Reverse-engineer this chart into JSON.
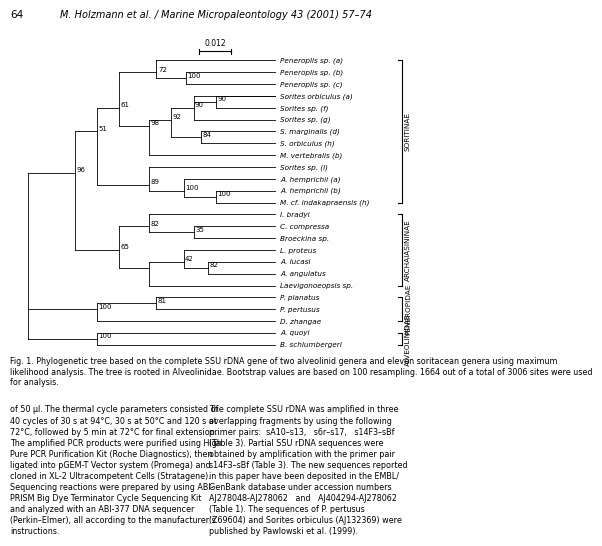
{
  "page_header": "64",
  "page_title": "M. Holzmann et al. / Marine Micropaleontology 43 (2001) 57–74",
  "scale_bar_label": "0.012",
  "fig_caption": "Fig. 1. Phylogenetic tree based on the complete SSU rDNA gene of two alveolinid genera and eleven soritacean genera using maximum\nlikelihood analysis. The tree is rooted in Alveolinidae. Bootstrap values are based on 100 resampling. 1664 out of a total of 3006 sites were used\nfor analysis.",
  "body_text_left": "of 50 μl. The thermal cycle parameters consisted of\n40 cycles of 30 s at 94°C, 30 s at 50°C and 120 s at\n72°C, followed by 5 min at 72°C for final extension.\nThe amplified PCR products were purified using High\nPure PCR Purification Kit (Roche Diagnostics), then\nligated into pGEM-T Vector system (Promega) and\ncloned in XL-2 Ultracompetent Cells (Stratagene).\nSequencing reactions were prepared by using ABI-\nPRISM Big Dye Terminator Cycle Sequencing Kit\nand analyzed with an ABI-377 DNA sequencer\n(Perkin–Elmer), all according to the manufacturer’s\ninstructions.",
  "body_text_right": "The complete SSU rDNA was amplified in three\noverlapping fragments by using the following\nprimer pairs:  sA10–s13,   s6r–s17,   s14F3–sBf\n(Table 3). Partial SSU rDNA sequences were\nobtained by amplification with the primer pair\ns14F3–sBf (Table 3). The new sequences reported\nin this paper have been deposited in the EMBL/\nGenBank database under accession numbers\nAJ278048-AJ278062   and   AJ404294-AJ278062\n(Table 1). The sequences of P. pertusus\n(Z69604) and Sorites orbiculus (AJ132369) were\npublished by Pawlowski et al. (1999).",
  "taxa": [
    "Peneroplis sp. (a)",
    "Peneroplis sp. (b)",
    "Peneroplis sp. (c)",
    "Sorites orbiculus (a)",
    "Sorites sp. (f)",
    "Sorites sp. (g)",
    "S. marginalis (d)",
    "S. orbiculus (h)",
    "M. vertebralis (b)",
    "Sorites sp. (i)",
    "A. hemprichii (a)",
    "A. hemprichii (b)",
    "M. cf. indakapraensis (h)",
    "I. bradyi",
    "C. compressa",
    "Broeckina sp.",
    "L. proteus",
    "A. lucasi",
    "A. angulatus",
    "Laevigonoeopsis sp.",
    "P. planatus",
    "P. pertusus",
    "D. zhangae",
    "A. quoyi",
    "B. schlumbergeri"
  ],
  "clades": [
    {
      "name": "SORITINAE",
      "i0": 0,
      "i1": 12
    },
    {
      "name": "ARCHAIASININAE",
      "i0": 13,
      "i1": 19
    },
    {
      "name": "PENEROPIDAE",
      "i0": 20,
      "i1": 22
    },
    {
      "name": "ALVEOLINIDAE",
      "i0": 23,
      "i1": 24
    }
  ],
  "tree_color": "#000000",
  "bg_color": "#ffffff",
  "font_size_taxa": 5.2,
  "font_size_bootstrap": 5.0,
  "font_size_header": 7.0,
  "font_size_caption": 5.8,
  "font_size_body": 5.8,
  "font_size_clade": 5.2,
  "font_size_scale": 5.5,
  "font_size_page_num": 7.5
}
